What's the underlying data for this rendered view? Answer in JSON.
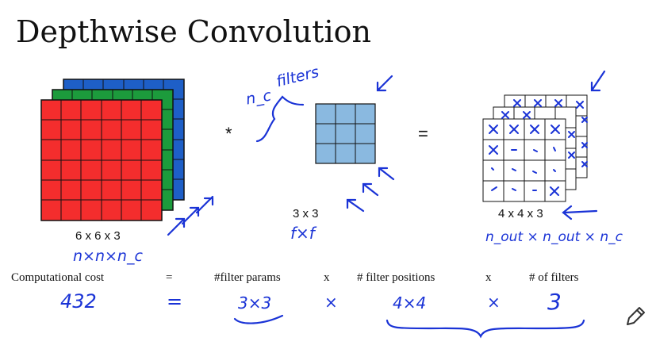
{
  "title": "Depthwise Convolution",
  "colors": {
    "red": "#f42d2d",
    "green": "#1c9b3c",
    "blue": "#1e5fc7",
    "filter": "#8ab9e0",
    "ink": "#1a33d6"
  },
  "operators": {
    "convolve": "*",
    "equals": "="
  },
  "input": {
    "dims": "6 x 6 x 3",
    "note": "n×n×n_c"
  },
  "filter": {
    "dims": "3 x 3",
    "note": "f×f",
    "annotation_nc": "n_c",
    "annotation_filters": "filters"
  },
  "output": {
    "dims": "4 x 4 x 3",
    "note": "n_out × n_out × n_c"
  },
  "cost_row": {
    "label": "Computational cost",
    "eq": "=",
    "term1": "#filter params",
    "times1": "x",
    "term2": "# filter positions",
    "times2": "x",
    "term3": "# of filters"
  },
  "handwritten_values": {
    "total": "432",
    "eq": "=",
    "params": "3×3",
    "times1": "×",
    "positions": "4×4",
    "times2": "×",
    "filters": "3"
  },
  "icons": {
    "pencil": "pencil-icon"
  }
}
